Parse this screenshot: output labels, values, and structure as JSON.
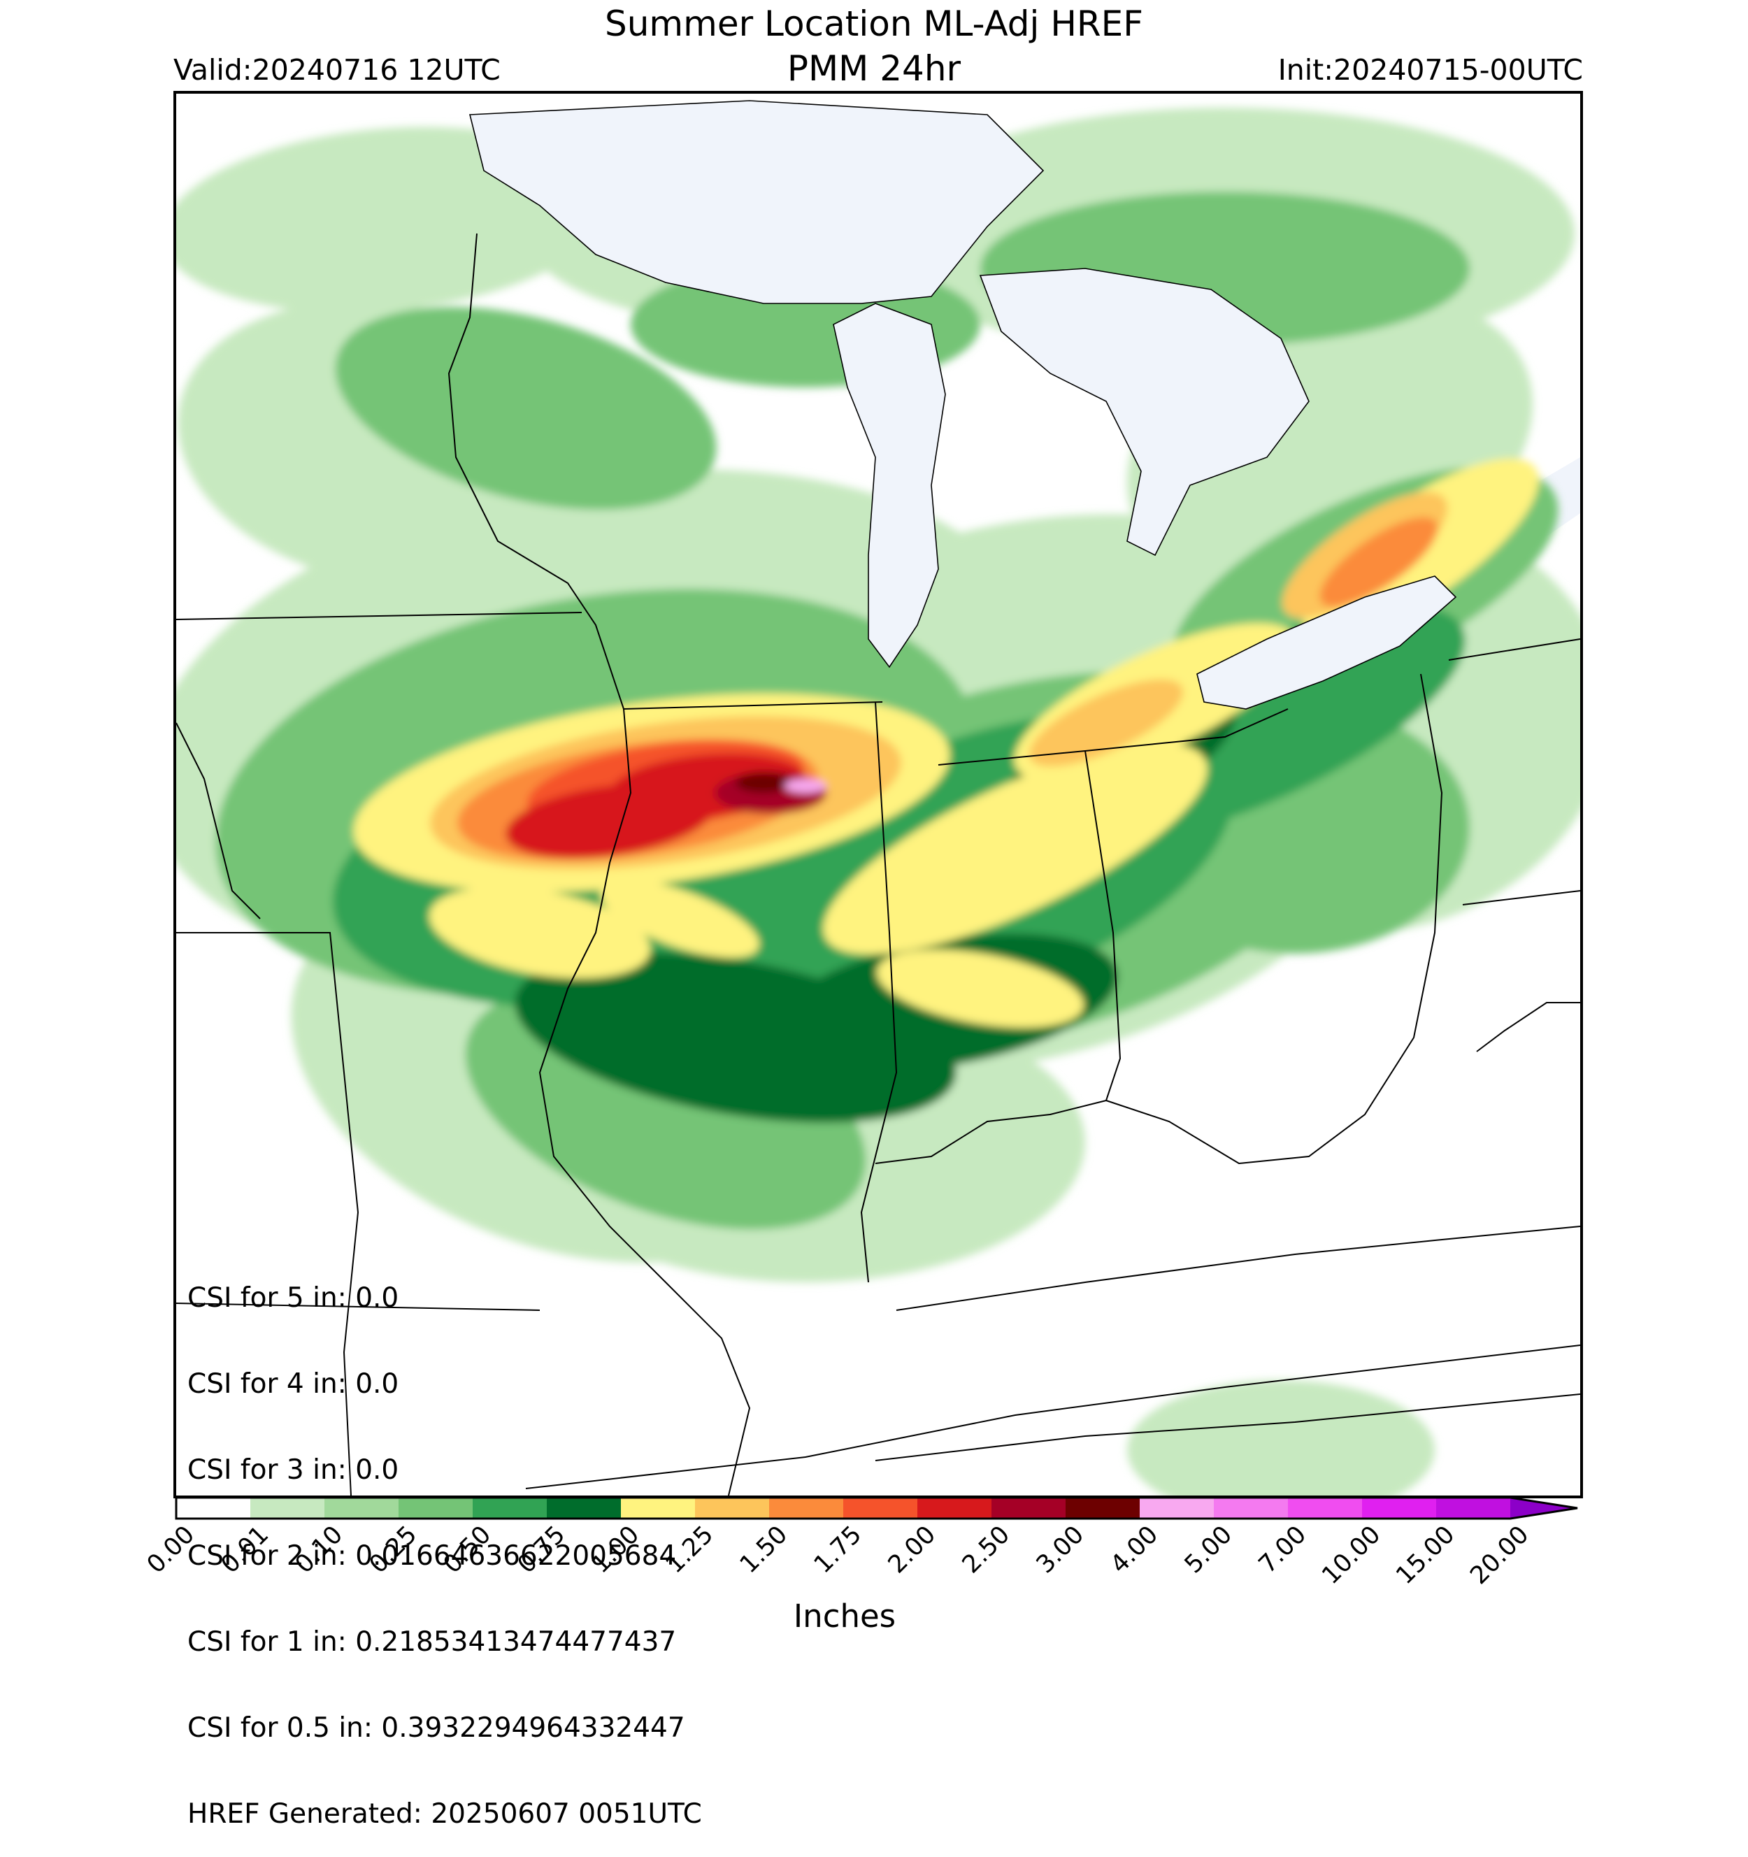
{
  "header": {
    "title_line1": "Summer Location ML-Adj HREF",
    "title_line2": "PMM 24hr",
    "valid": "Valid:20240716 12UTC",
    "init": "Init:20240715-00UTC"
  },
  "stats": {
    "lines": [
      "CSI for 5 in: 0.0",
      "CSI for 4 in: 0.0",
      "CSI for 3 in: 0.0",
      "CSI for 2 in: 0.016646366220056​84",
      "CSI for 1 in: 0.21853413474477437",
      "CSI for 0.5 in: 0.3932294964332447",
      "HREF Generated: 20250607 0051UTC"
    ]
  },
  "colorbar": {
    "label": "Inches",
    "ticks": [
      "0.00",
      "0.01",
      "0.10",
      "0.25",
      "0.50",
      "0.75",
      "1.00",
      "1.25",
      "1.50",
      "1.75",
      "2.00",
      "2.50",
      "3.00",
      "4.00",
      "5.00",
      "7.00",
      "10.00",
      "15.00",
      "20.00"
    ],
    "colors": [
      "#ffffff",
      "#c7e9c0",
      "#a1d99b",
      "#74c476",
      "#31a354",
      "#006d2c",
      "#fff37f",
      "#fdc55b",
      "#fb8b3b",
      "#f5532b",
      "#d7191c",
      "#a50026",
      "#6d0000",
      "#f8a9f0",
      "#f47af0",
      "#f04df0",
      "#e020f0",
      "#c010e0",
      "#8c00c8"
    ],
    "extend_color": "#8c00c8"
  },
  "map": {
    "lake_color": "#f0f4fb",
    "region": "Upper Midwest / Great Lakes / Ohio Valley",
    "max_category": "4.00-5.00"
  }
}
